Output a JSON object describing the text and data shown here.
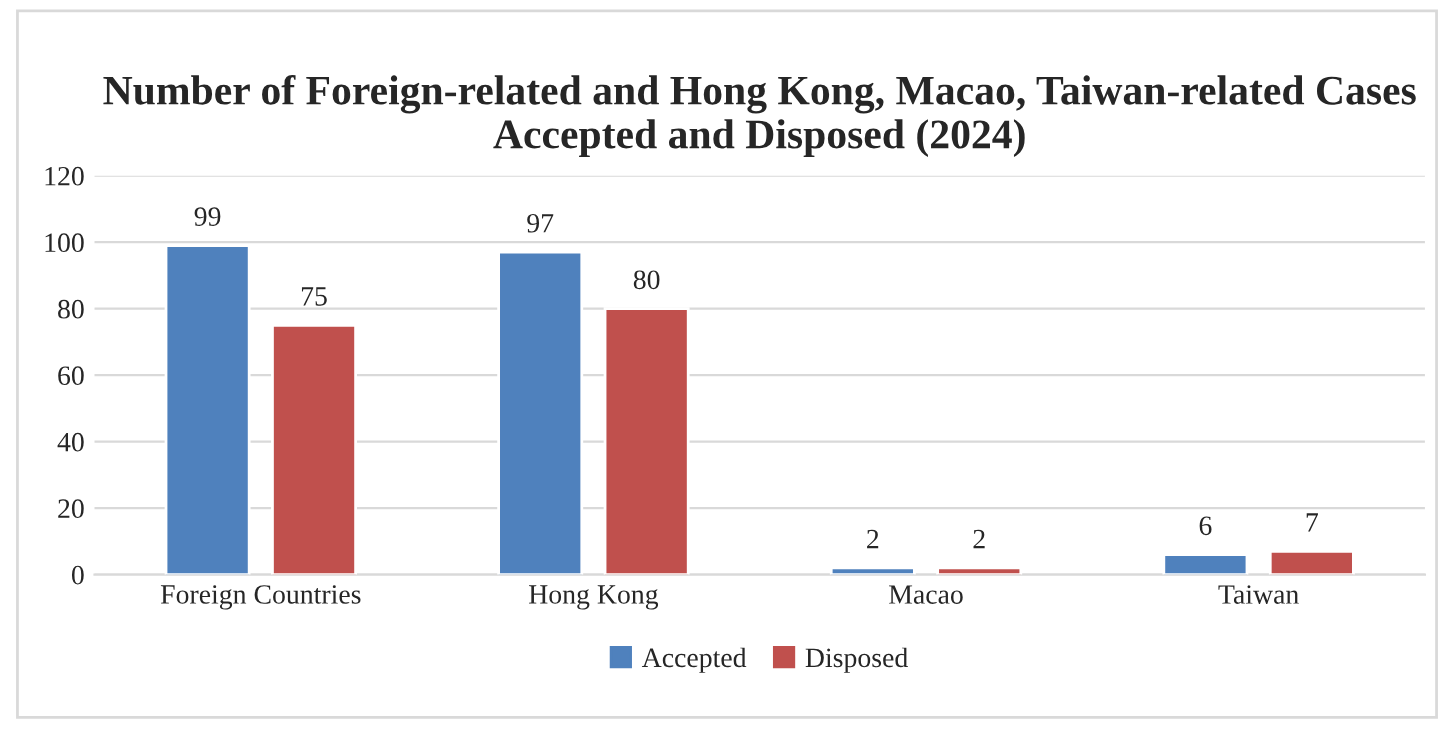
{
  "chart_data": {
    "type": "bar",
    "title": "Number of Foreign-related and Hong Kong, Macao, Taiwan-related Cases Accepted and Disposed (2024)",
    "categories": [
      "Foreign Countries",
      "Hong Kong",
      "Macao",
      "Taiwan"
    ],
    "series": [
      {
        "name": "Accepted",
        "color": "#4f81bd",
        "values": [
          99,
          97,
          2,
          6
        ]
      },
      {
        "name": "Disposed",
        "color": "#c0504d",
        "values": [
          75,
          80,
          2,
          7
        ]
      }
    ],
    "ylim": [
      0,
      120
    ],
    "yticks": [
      0,
      20,
      40,
      60,
      80,
      100,
      120
    ],
    "grid": "y",
    "legend": "bottom",
    "data_labels": true
  }
}
